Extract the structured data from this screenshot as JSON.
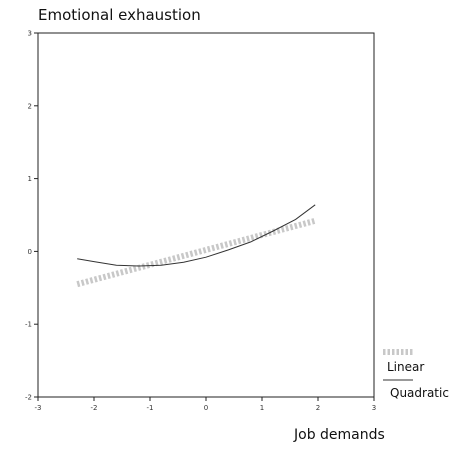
{
  "chart_data": {
    "type": "line",
    "title": "Emotional exhaustion",
    "xlabel": "Job demands",
    "ylabel": "",
    "xlim": [
      -3,
      3
    ],
    "ylim": [
      -2,
      3
    ],
    "x_ticks": [
      -3,
      -2,
      -1,
      0,
      1,
      2,
      3
    ],
    "y_ticks": [
      -2,
      -1,
      0,
      1,
      2,
      3
    ],
    "grid": false,
    "legend_position": "bottom-right",
    "series": [
      {
        "name": "Linear",
        "style": "thick dotted",
        "color": "#c8c8c8",
        "x": [
          -2.3,
          1.95
        ],
        "y": [
          -0.45,
          0.42
        ]
      },
      {
        "name": "Quadratic",
        "style": "solid",
        "color": "#333333",
        "x": [
          -2.3,
          -2.0,
          -1.6,
          -1.2,
          -0.8,
          -0.4,
          0.0,
          0.4,
          0.8,
          1.2,
          1.6,
          1.95
        ],
        "y": [
          -0.1,
          -0.14,
          -0.19,
          -0.2,
          -0.19,
          -0.15,
          -0.08,
          0.02,
          0.13,
          0.28,
          0.44,
          0.64
        ]
      }
    ]
  }
}
